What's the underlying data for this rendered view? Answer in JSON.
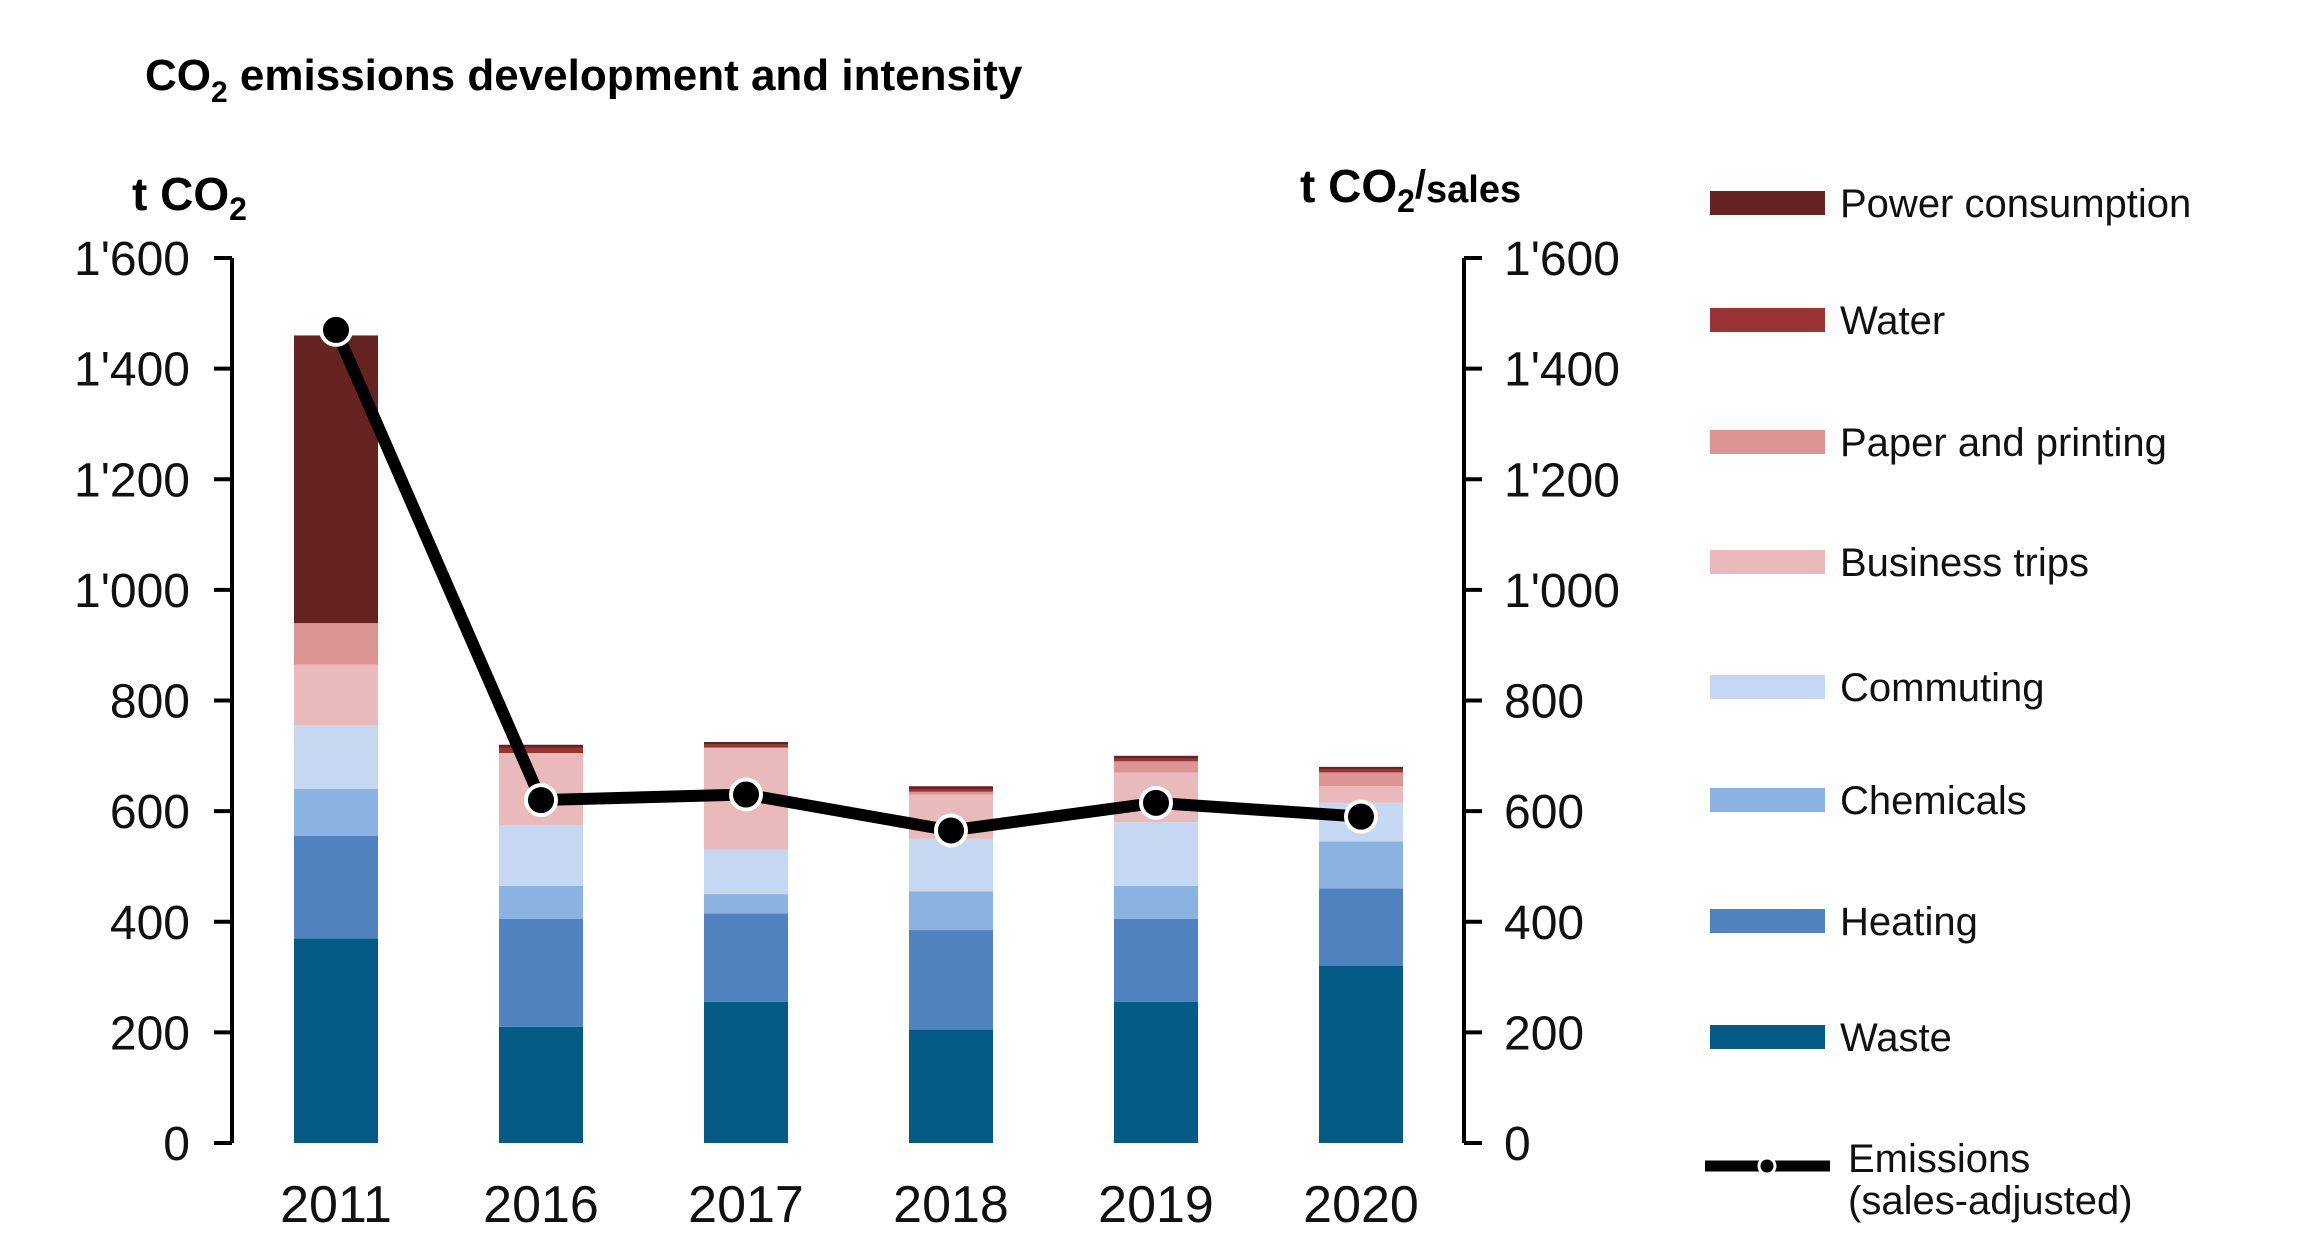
{
  "chart_data": {
    "type": "bar",
    "stacked": true,
    "title": "CO₂ emissions development and intensity",
    "title_parts": {
      "pre": "CO",
      "sub": "2",
      "post": " emissions development and intensity"
    },
    "left_axis_label": {
      "pre": "t CO",
      "sub": "2",
      "post": ""
    },
    "right_axis_label": {
      "pre": "t CO",
      "sub": "2",
      "mid": "/",
      "post": "sales"
    },
    "categories": [
      "2011",
      "2016",
      "2017",
      "2018",
      "2019",
      "2020"
    ],
    "ylim": [
      0,
      1600
    ],
    "yticks": [
      0,
      200,
      400,
      600,
      800,
      1000,
      1200,
      1400,
      1600
    ],
    "ytick_labels": [
      "0",
      "200",
      "400",
      "600",
      "800",
      "1'000",
      "1'200",
      "1'400",
      "1'600"
    ],
    "series": [
      {
        "name": "Waste",
        "color": "#055a86",
        "values": [
          370,
          210,
          255,
          205,
          255,
          320
        ]
      },
      {
        "name": "Heating",
        "color": "#4f82bf",
        "values": [
          185,
          195,
          160,
          180,
          150,
          140
        ]
      },
      {
        "name": "Chemicals",
        "color": "#8bb3e1",
        "values": [
          85,
          60,
          35,
          70,
          60,
          85
        ]
      },
      {
        "name": "Commuting",
        "color": "#c6d8f1",
        "values": [
          115,
          110,
          80,
          95,
          115,
          70
        ]
      },
      {
        "name": "Business trips",
        "color": "#e9b9bb",
        "values": [
          110,
          130,
          185,
          80,
          90,
          30
        ]
      },
      {
        "name": "Paper and printing",
        "color": "#dc9495",
        "values": [
          75,
          0,
          0,
          5,
          20,
          25
        ]
      },
      {
        "name": "Water",
        "color": "#9a3434",
        "values": [
          0,
          10,
          5,
          5,
          5,
          5
        ]
      },
      {
        "name": "Power consumption",
        "color": "#652422",
        "values": [
          520,
          5,
          5,
          5,
          5,
          5
        ]
      }
    ],
    "line": {
      "name": "Emissions (sales-adjusted)",
      "name_line1": "Emissions",
      "name_line2": "(sales-adjusted)",
      "axis": "right",
      "color": "#000000",
      "values": [
        1470,
        620,
        630,
        565,
        615,
        590
      ]
    },
    "legend_position": "right"
  }
}
